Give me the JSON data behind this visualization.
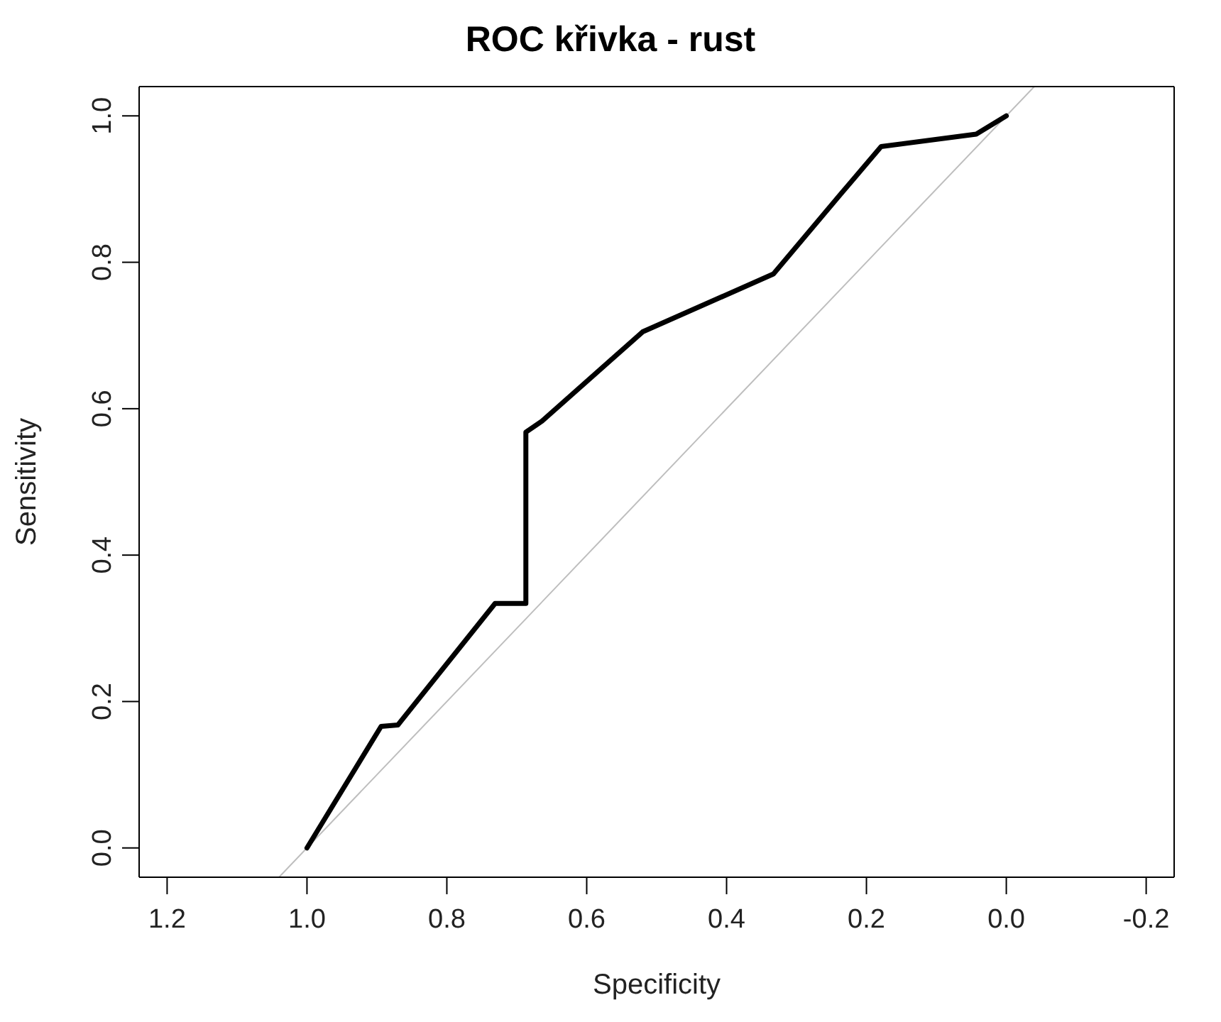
{
  "chart_data": {
    "type": "line",
    "title": "ROC křivka - rust",
    "xlabel": "Specificity",
    "ylabel": "Sensitivity",
    "xlim": [
      1.24,
      -0.24
    ],
    "ylim": [
      -0.04,
      1.04
    ],
    "xticks": [
      {
        "value": 1.2,
        "label": "1.2"
      },
      {
        "value": 1.0,
        "label": "1.0"
      },
      {
        "value": 0.8,
        "label": "0.8"
      },
      {
        "value": 0.6,
        "label": "0.6"
      },
      {
        "value": 0.4,
        "label": "0.4"
      },
      {
        "value": 0.2,
        "label": "0.2"
      },
      {
        "value": 0.0,
        "label": "0.0"
      },
      {
        "value": -0.2,
        "label": "-0.2"
      }
    ],
    "yticks": [
      {
        "value": 0.0,
        "label": "0.0"
      },
      {
        "value": 0.2,
        "label": "0.2"
      },
      {
        "value": 0.4,
        "label": "0.4"
      },
      {
        "value": 0.6,
        "label": "0.6"
      },
      {
        "value": 0.8,
        "label": "0.8"
      },
      {
        "value": 1.0,
        "label": "1.0"
      }
    ],
    "marker": "none",
    "line_style": "solid",
    "series": [
      {
        "color": "#bebebe",
        "x": [
          1.04,
          -0.04
        ],
        "values": [
          -0.04,
          1.04
        ]
      },
      {
        "color": "#000000",
        "x": [
          1.0,
          0.894,
          0.87,
          0.731,
          0.687,
          0.687,
          0.664,
          0.52,
          0.333,
          0.236,
          0.179,
          0.043,
          0.0
        ],
        "values": [
          0.0,
          0.166,
          0.168,
          0.334,
          0.334,
          0.568,
          0.583,
          0.705,
          0.784,
          0.894,
          0.958,
          0.975,
          1.0
        ]
      }
    ]
  }
}
